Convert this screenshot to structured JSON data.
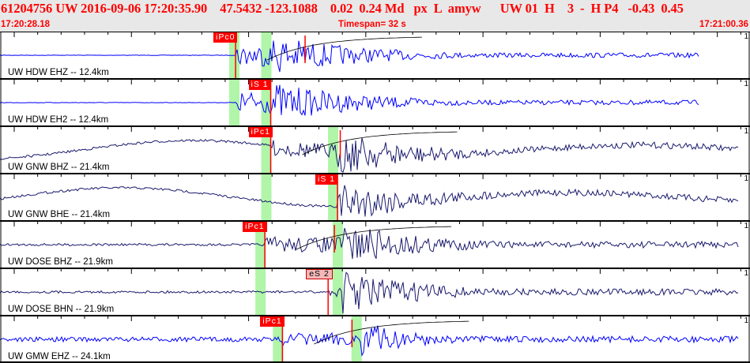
{
  "header": {
    "title": "61204756 UW 2016-09-06 17:20:35.90    47.5432 -123.1088    0.02  0.24 Md   px  L  amyw      UW 01  H    3  -  H P4   -0.43  0.45",
    "start_time": "17:20:28.18",
    "timespan": "Timespan=  32 s",
    "end_time": "17:21:00.36"
  },
  "colors": {
    "accent": "#ff0000",
    "trace_blue": "#0000ff",
    "trace_navy": "#1a1a6e",
    "pick_window": "#b0f5a8"
  },
  "channels": [
    {
      "label": "UW HDW EHZ -- 12.4km",
      "scale": "1",
      "phase": "iPc0",
      "pick_s": 10.05,
      "style": "blue",
      "coda": true
    },
    {
      "label": "UW HDW EH2 -- 12.4km",
      "scale": "1",
      "phase": "iS 1",
      "pick_s": 11.55,
      "style": "blue"
    },
    {
      "label": "UW GNW BHZ -- 21.4km",
      "scale": "1",
      "phase": "iPc1",
      "pick_s": 11.55,
      "style": "navy",
      "coda": true
    },
    {
      "label": "UW GNW BHE -- 21.4km",
      "scale": "1",
      "phase": "iS 1",
      "pick_s": 14.4,
      "style": "navy"
    },
    {
      "label": "UW DOSE BHZ -- 21.9km",
      "scale": "1",
      "phase": "iPc1",
      "pick_s": 11.3,
      "style": "navy",
      "coda": true
    },
    {
      "label": "UW DOSE BHN -- 21.9km",
      "scale": "1",
      "phase": "eS 2",
      "pick_s": 14.0,
      "style": "navy",
      "emergent": true
    },
    {
      "label": "UW GMW EHZ -- 24.1km",
      "scale": "1",
      "phase": "iPc1",
      "pick_s": 12.05,
      "style": "blue",
      "coda": true
    }
  ]
}
